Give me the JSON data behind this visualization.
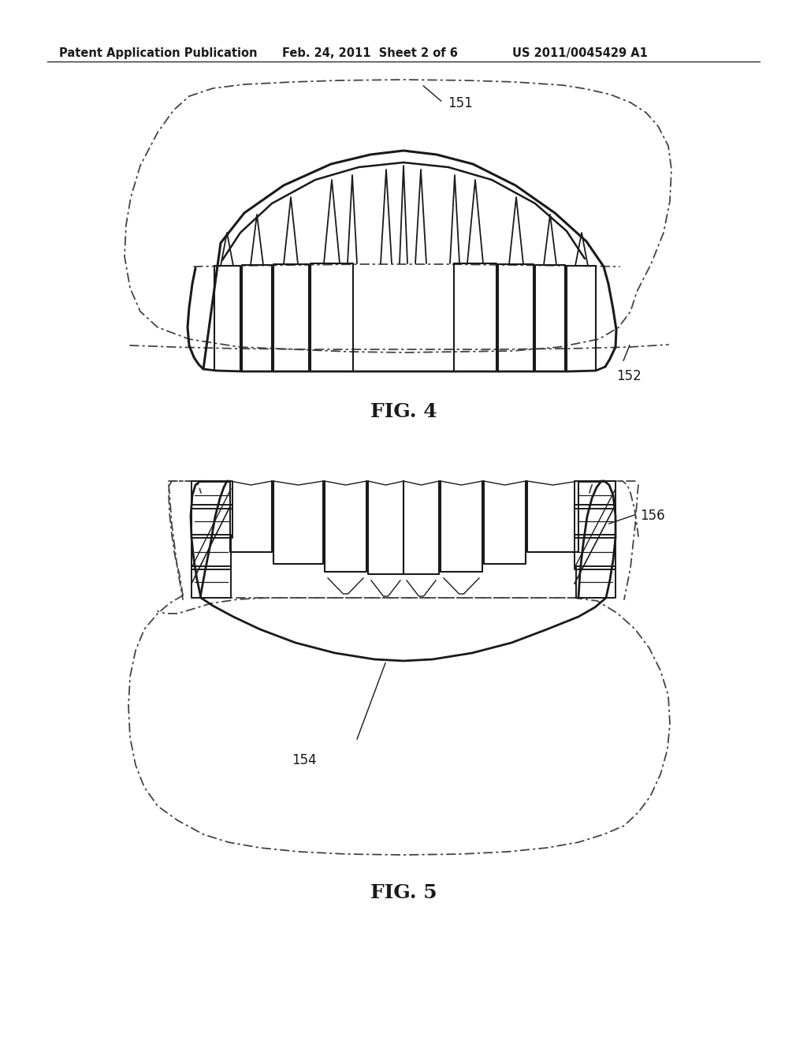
{
  "background_color": "#ffffff",
  "line_color": "#1a1a1a",
  "dash_dot_color": "#333333",
  "header_left": "Patent Application Publication",
  "header_mid": "Feb. 24, 2011  Sheet 2 of 6",
  "header_right": "US 2011/0045429 A1",
  "fig4_label": "FIG. 4",
  "fig5_label": "FIG. 5",
  "label_151": "151",
  "label_152": "152",
  "label_154": "154",
  "label_156": "156",
  "header_fontsize": 10.5,
  "fig_label_fontsize": 18,
  "callout_fontsize": 12
}
